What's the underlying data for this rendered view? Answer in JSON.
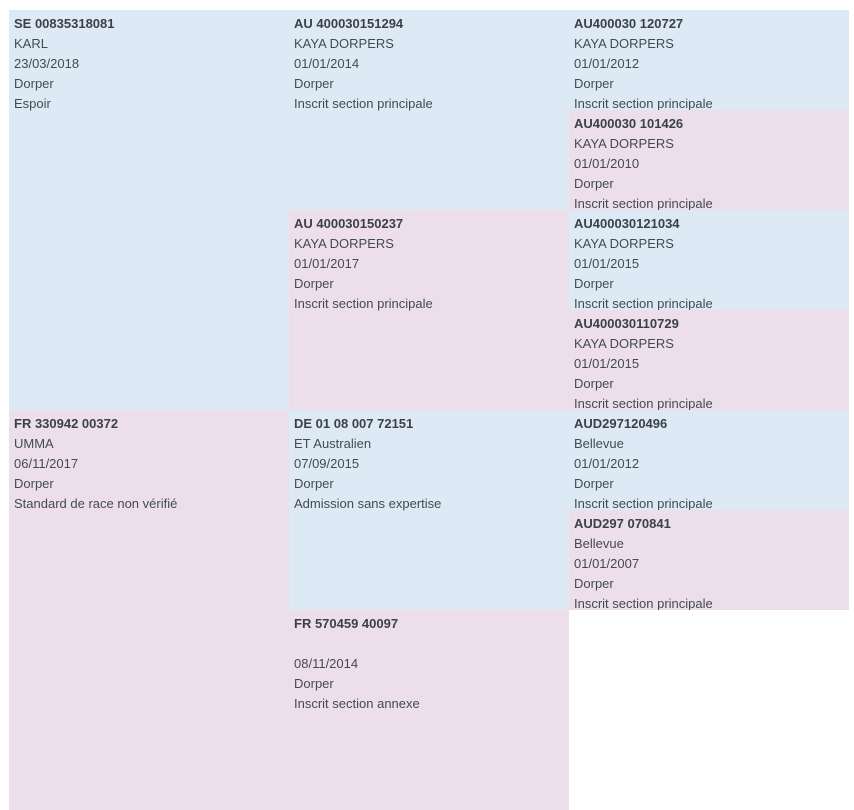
{
  "pedigree": {
    "animal_sire": {
      "id": "SE 00835318081",
      "name": "KARL",
      "birth_date": "23/03/2018",
      "breed": "Dorper",
      "status": "Espoir"
    },
    "animal_dam": {
      "id": "FR 330942 00372",
      "name": "UMMA",
      "birth_date": "06/11/2017",
      "breed": "Dorper",
      "status": "Standard de race non vérifié"
    },
    "sire_sire": {
      "id": "AU 400030151294",
      "name": "KAYA DORPERS",
      "birth_date": "01/01/2014",
      "breed": "Dorper",
      "status": "Inscrit section principale"
    },
    "sire_dam": {
      "id": "AU 400030150237",
      "name": "KAYA DORPERS",
      "birth_date": "01/01/2017",
      "breed": "Dorper",
      "status": "Inscrit section principale"
    },
    "dam_sire": {
      "id": "DE 01 08 007 72151",
      "name": "ET Australien",
      "birth_date": "07/09/2015",
      "breed": "Dorper",
      "status": "Admission sans expertise"
    },
    "dam_dam": {
      "id": "FR 570459 40097",
      "name": "",
      "birth_date": "08/11/2014",
      "breed": "Dorper",
      "status": "Inscrit section annexe"
    },
    "ss_sire": {
      "id": "AU400030 120727",
      "name": "KAYA DORPERS",
      "birth_date": "01/01/2012",
      "breed": "Dorper",
      "status": "Inscrit section principale"
    },
    "ss_dam": {
      "id": "AU400030 101426",
      "name": "KAYA DORPERS",
      "birth_date": "01/01/2010",
      "breed": "Dorper",
      "status": "Inscrit section principale"
    },
    "sd_sire": {
      "id": "AU400030121034",
      "name": "KAYA DORPERS",
      "birth_date": "01/01/2015",
      "breed": "Dorper",
      "status": "Inscrit section principale"
    },
    "sd_dam": {
      "id": "AU400030110729",
      "name": "KAYA DORPERS",
      "birth_date": "01/01/2015",
      "breed": "Dorper",
      "status": "Inscrit section principale"
    },
    "ds_sire": {
      "id": "AUD297120496",
      "name": "Bellevue",
      "birth_date": "01/01/2012",
      "breed": "Dorper",
      "status": "Inscrit section principale"
    },
    "ds_dam": {
      "id": "AUD297 070841",
      "name": "Bellevue",
      "birth_date": "01/01/2007",
      "breed": "Dorper",
      "status": "Inscrit section principale"
    }
  },
  "colors": {
    "male_background": "#dde9f5",
    "female_background": "#eddfe9",
    "text": "#444a50"
  }
}
